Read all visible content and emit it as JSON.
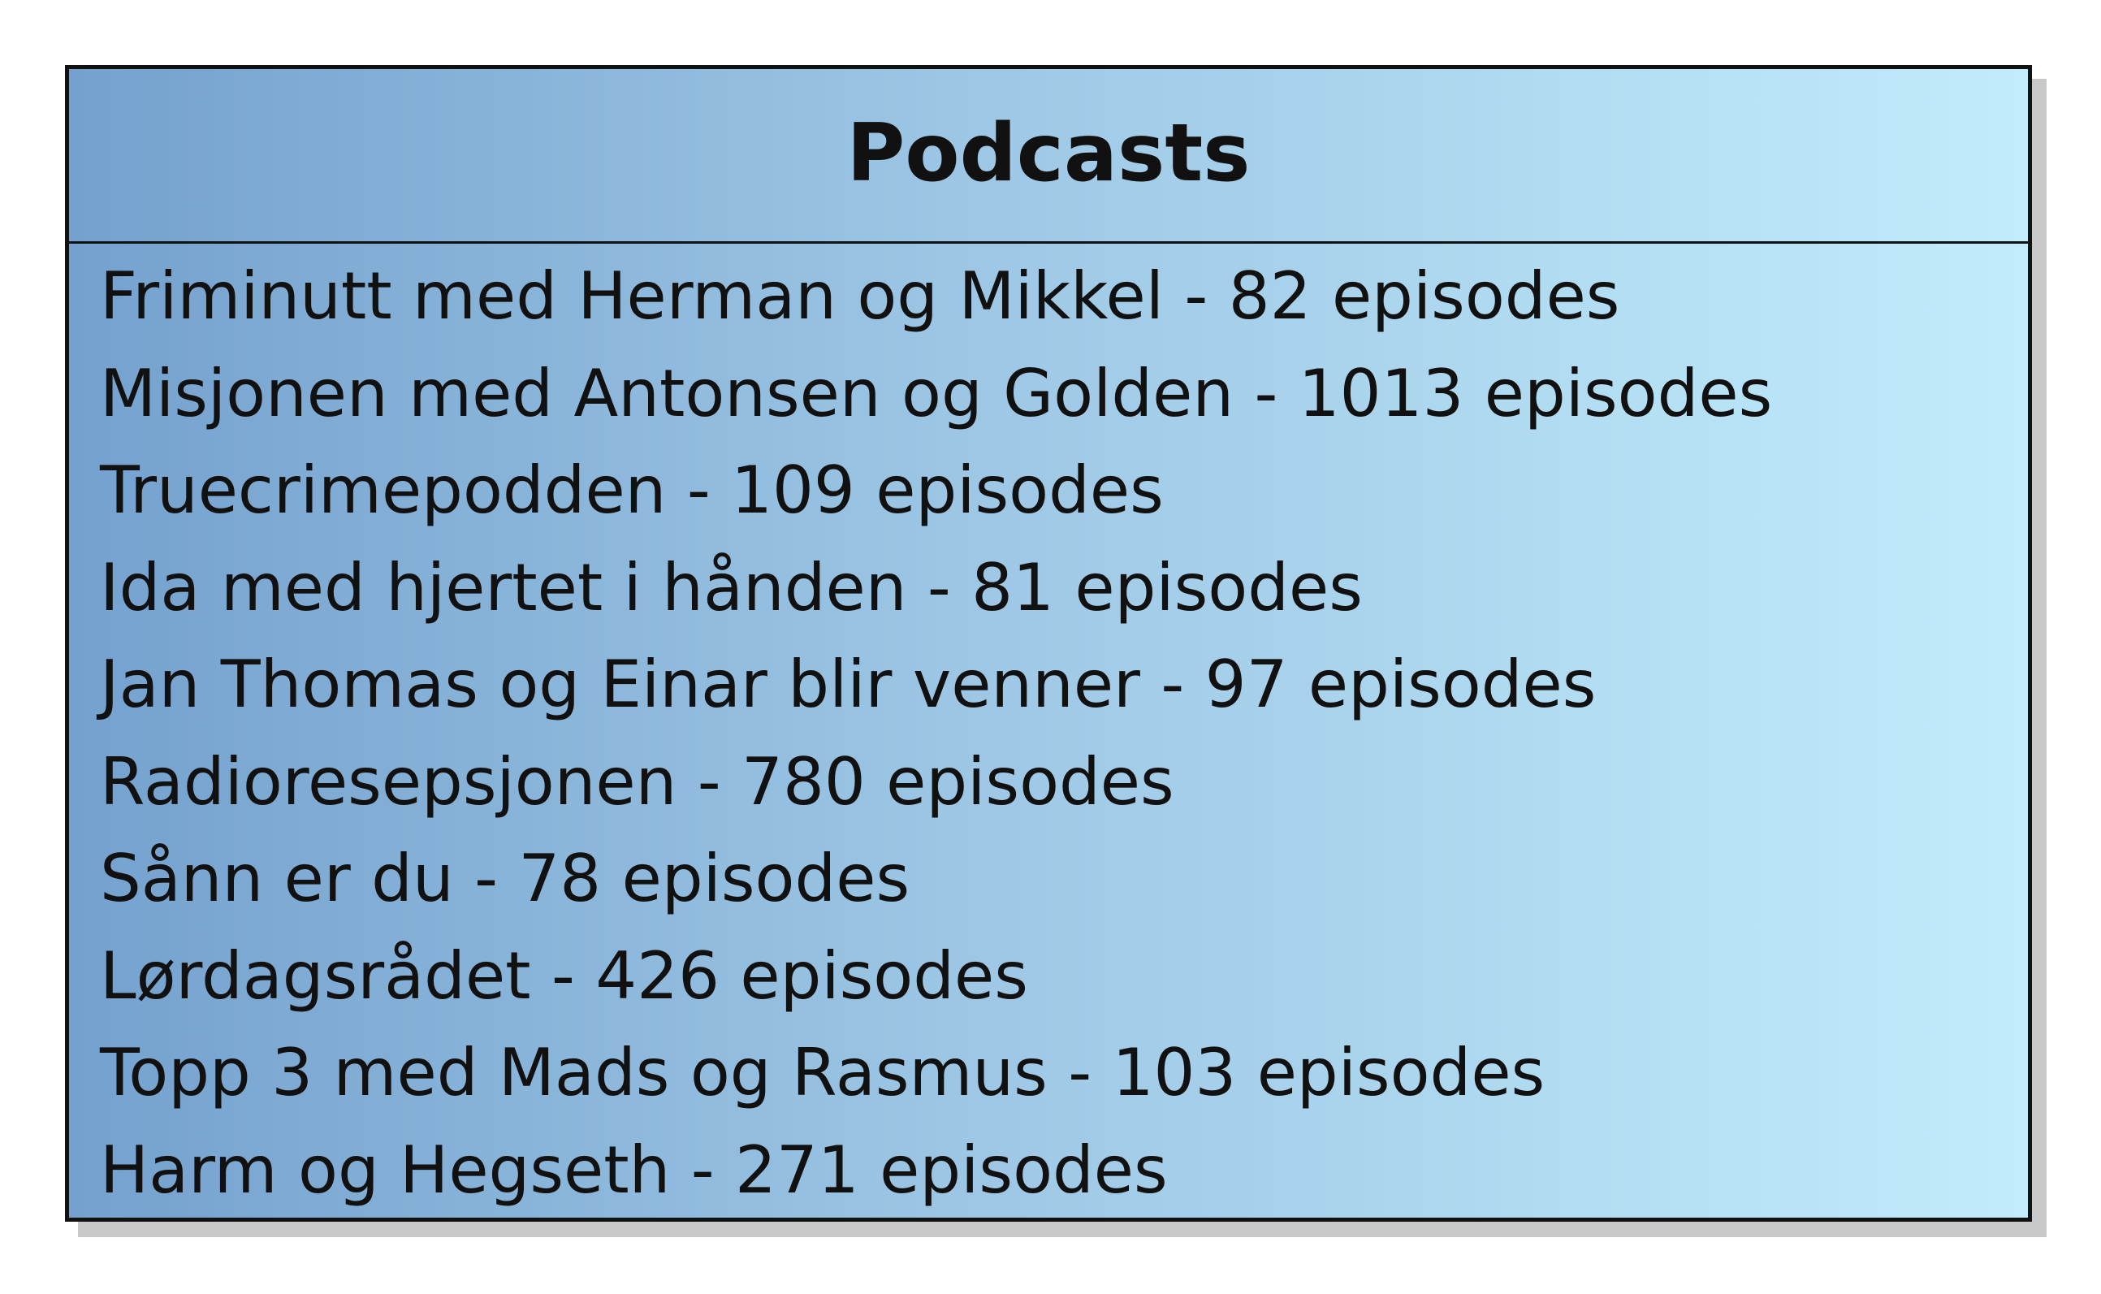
{
  "diagram": {
    "title": "Podcasts",
    "items": [
      "Friminutt med Herman og Mikkel - 82 episodes",
      "Misjonen med Antonsen og Golden - 1013 episodes",
      "Truecrimepodden - 109 episodes",
      "Ida med hjertet i hånden - 81 episodes",
      "Jan Thomas og Einar blir venner - 97 episodes",
      "Radioresepsjonen - 780 episodes",
      "Sånn er du - 78 episodes",
      "Lørdagsrådet - 426 episodes",
      "Topp 3 med Mads og Rasmus - 103 episodes",
      "Harm og Hegseth - 271 episodes"
    ],
    "colors": {
      "gradient_start": "#74a1ce",
      "gradient_end": "#c2ecfb",
      "border": "#111111",
      "shadow": "#c8c8c8"
    }
  }
}
